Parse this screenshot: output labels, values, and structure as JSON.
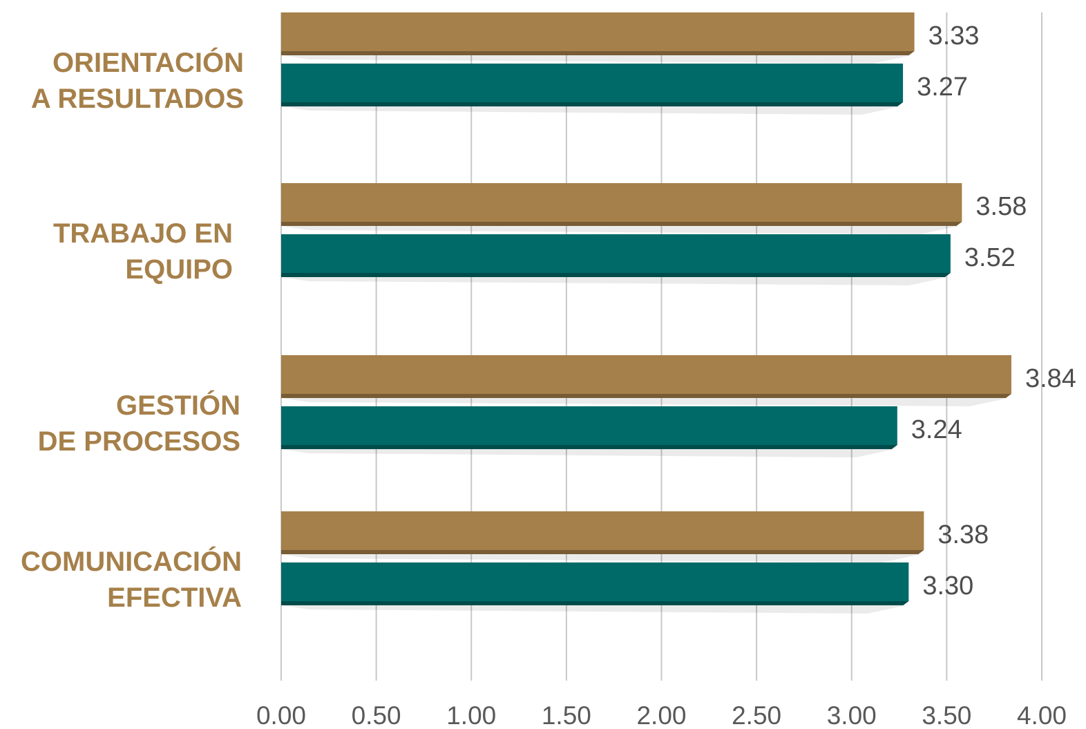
{
  "chart_data": {
    "type": "bar",
    "orientation": "horizontal",
    "categories": [
      [
        "ORIENTACIÓN",
        "A RESULTADOS"
      ],
      [
        "TRABAJO EN",
        "EQUIPO"
      ],
      [
        "GESTIÓN",
        "DE PROCESOS"
      ],
      [
        "COMUNICACIÓN",
        "EFECTIVA"
      ]
    ],
    "series": [
      {
        "values": [
          3.33,
          3.58,
          3.84,
          3.38
        ],
        "labels": [
          "3.33",
          "3.58",
          "3.84",
          "3.38"
        ],
        "color": "#a6804a"
      },
      {
        "values": [
          3.27,
          3.52,
          3.24,
          3.3
        ],
        "labels": [
          "3.27",
          "3.52",
          "3.24",
          "3.30"
        ],
        "color": "#006a68"
      }
    ],
    "xlim": [
      0,
      4
    ],
    "xticks": [
      "0.00",
      "0.50",
      "1.00",
      "1.50",
      "2.00",
      "2.50",
      "3.00",
      "3.50",
      "4.00"
    ],
    "grid": "vertical",
    "legend": "none",
    "title": "",
    "xlabel": "",
    "ylabel": ""
  }
}
